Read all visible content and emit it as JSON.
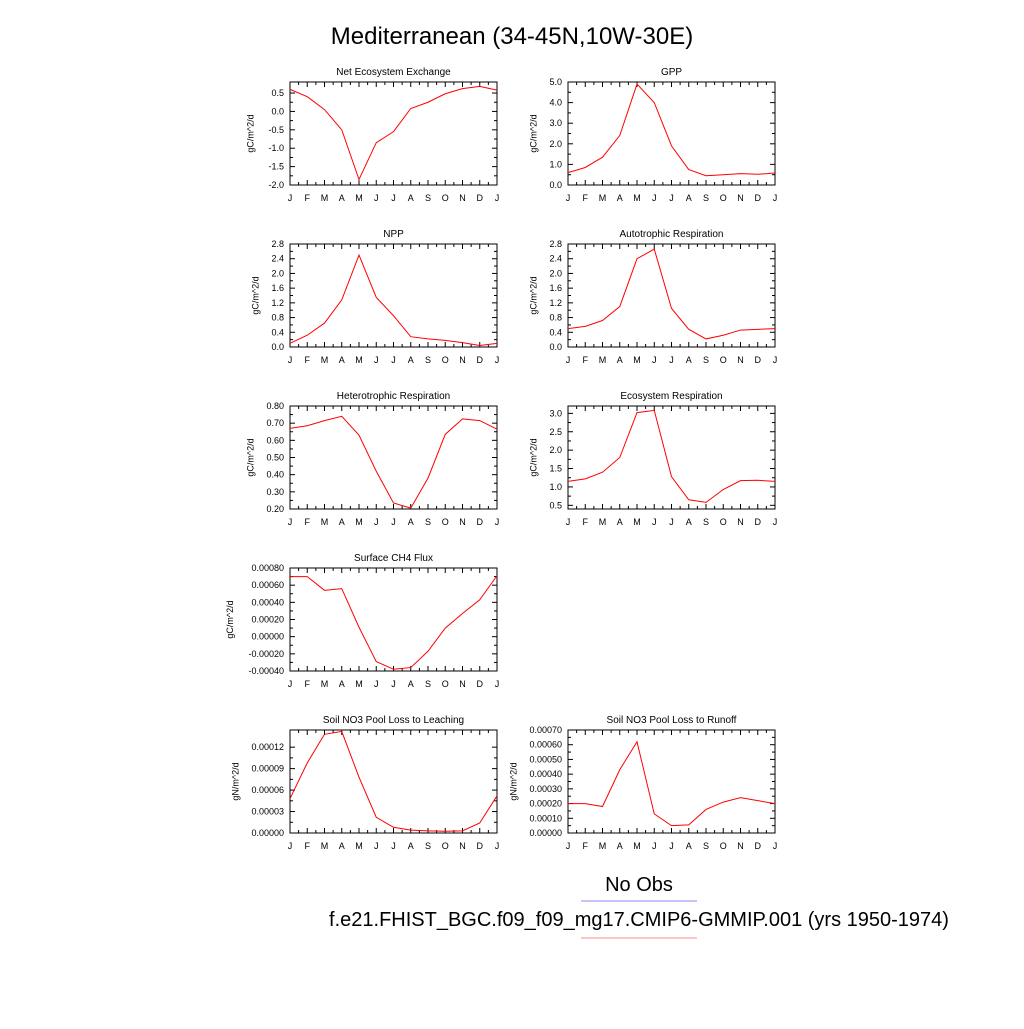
{
  "main_title": "Mediterranean (34-45N,10W-30E)",
  "colors": {
    "model": "#ff0000",
    "obs": "#0000ff"
  },
  "legend": [
    {
      "label": "No Obs",
      "color": "#8888ff"
    },
    {
      "label": "f.e21.FHIST_BGC.f09_f09_mg17.CMIP6-GMMIP.001 (yrs 1950-1974)",
      "color": "#ff8888"
    }
  ],
  "chart_data": [
    {
      "type": "line",
      "title": "Net Ecosystem Exchange",
      "ylabel": "gC/m^2/d",
      "categories": [
        "J",
        "F",
        "M",
        "A",
        "M",
        "J",
        "J",
        "A",
        "S",
        "O",
        "N",
        "D",
        "J"
      ],
      "ylim": [
        -2.0,
        0.8
      ],
      "yticks": [
        -2.0,
        -1.5,
        -1.0,
        -0.5,
        0.0,
        0.5
      ],
      "ytick_labels": [
        "-2.0",
        "-1.5",
        "-1.0",
        "-0.5",
        "0.0",
        "0.5"
      ],
      "values": [
        0.6,
        0.4,
        0.05,
        -0.5,
        -1.85,
        -0.85,
        -0.55,
        0.08,
        0.25,
        0.48,
        0.62,
        0.68,
        0.58
      ]
    },
    {
      "type": "line",
      "title": "GPP",
      "ylabel": "gC/m^2/d",
      "categories": [
        "J",
        "F",
        "M",
        "A",
        "M",
        "J",
        "J",
        "A",
        "S",
        "O",
        "N",
        "D",
        "J"
      ],
      "ylim": [
        0.0,
        5.0
      ],
      "yticks": [
        0.0,
        1.0,
        2.0,
        3.0,
        4.0,
        5.0
      ],
      "ytick_labels": [
        "0.0",
        "1.0",
        "2.0",
        "3.0",
        "4.0",
        "5.0"
      ],
      "values": [
        0.6,
        0.85,
        1.35,
        2.4,
        4.9,
        4.0,
        1.9,
        0.75,
        0.45,
        0.5,
        0.55,
        0.52,
        0.58
      ]
    },
    {
      "type": "line",
      "title": "NPP",
      "ylabel": "gC/m^2/d",
      "categories": [
        "J",
        "F",
        "M",
        "A",
        "M",
        "J",
        "J",
        "A",
        "S",
        "O",
        "N",
        "D",
        "J"
      ],
      "ylim": [
        0.0,
        2.8
      ],
      "yticks": [
        0.0,
        0.4,
        0.8,
        1.2,
        1.6,
        2.0,
        2.4,
        2.8
      ],
      "ytick_labels": [
        "0.0",
        "0.4",
        "0.8",
        "1.2",
        "1.6",
        "2.0",
        "2.4",
        "2.8"
      ],
      "values": [
        0.1,
        0.32,
        0.65,
        1.28,
        2.5,
        1.35,
        0.85,
        0.28,
        0.22,
        0.18,
        0.12,
        0.04,
        0.1
      ]
    },
    {
      "type": "line",
      "title": "Autotrophic Respiration",
      "ylabel": "gC/m^2/d",
      "categories": [
        "J",
        "F",
        "M",
        "A",
        "M",
        "J",
        "J",
        "A",
        "S",
        "O",
        "N",
        "D",
        "J"
      ],
      "ylim": [
        0.0,
        2.8
      ],
      "yticks": [
        0.0,
        0.4,
        0.8,
        1.2,
        1.6,
        2.0,
        2.4,
        2.8
      ],
      "ytick_labels": [
        "0.0",
        "0.4",
        "0.8",
        "1.2",
        "1.6",
        "2.0",
        "2.4",
        "2.8"
      ],
      "values": [
        0.5,
        0.56,
        0.72,
        1.1,
        2.4,
        2.66,
        1.05,
        0.48,
        0.22,
        0.32,
        0.46,
        0.48,
        0.5
      ]
    },
    {
      "type": "line",
      "title": "Heterotrophic Respiration",
      "ylabel": "gC/m^2/d",
      "categories": [
        "J",
        "F",
        "M",
        "A",
        "M",
        "J",
        "J",
        "A",
        "S",
        "O",
        "N",
        "D",
        "J"
      ],
      "ylim": [
        0.2,
        0.8
      ],
      "yticks": [
        0.2,
        0.3,
        0.4,
        0.5,
        0.6,
        0.7,
        0.8
      ],
      "ytick_labels": [
        "0.20",
        "0.30",
        "0.40",
        "0.50",
        "0.60",
        "0.70",
        "0.80"
      ],
      "values": [
        0.67,
        0.685,
        0.715,
        0.74,
        0.63,
        0.42,
        0.235,
        0.205,
        0.38,
        0.635,
        0.725,
        0.715,
        0.665
      ]
    },
    {
      "type": "line",
      "title": "Ecosystem Respiration",
      "ylabel": "gC/m^2/d",
      "categories": [
        "J",
        "F",
        "M",
        "A",
        "M",
        "J",
        "J",
        "A",
        "S",
        "O",
        "N",
        "D",
        "J"
      ],
      "ylim": [
        0.4,
        3.2
      ],
      "yticks": [
        0.5,
        1.0,
        1.5,
        2.0,
        2.5,
        3.0
      ],
      "ytick_labels": [
        "0.5",
        "1.0",
        "1.5",
        "2.0",
        "2.5",
        "3.0"
      ],
      "values": [
        1.15,
        1.22,
        1.4,
        1.8,
        3.02,
        3.08,
        1.28,
        0.65,
        0.58,
        0.93,
        1.17,
        1.18,
        1.15
      ]
    },
    {
      "type": "line",
      "title": "Surface CH4 Flux",
      "ylabel": "gC/m^2/d",
      "categories": [
        "J",
        "F",
        "M",
        "A",
        "M",
        "J",
        "J",
        "A",
        "S",
        "O",
        "N",
        "D",
        "J"
      ],
      "ylim": [
        -0.0004,
        0.0008
      ],
      "yticks": [
        -0.0004,
        -0.0002,
        0.0,
        0.0002,
        0.0004,
        0.0006,
        0.0008
      ],
      "ytick_labels": [
        "-0.00040",
        "-0.00020",
        "0.00000",
        "0.00020",
        "0.00040",
        "0.00060",
        "0.00080"
      ],
      "values": [
        0.0007,
        0.0007,
        0.00054,
        0.00056,
        0.00011,
        -0.00029,
        -0.00038,
        -0.00036,
        -0.00017,
        0.0001,
        0.00027,
        0.00043,
        0.00071
      ]
    },
    {
      "type": "line",
      "title": "Soil NO3 Pool Loss to Leaching",
      "ylabel": "gN/m^2/d",
      "categories": [
        "J",
        "F",
        "M",
        "A",
        "M",
        "J",
        "J",
        "A",
        "S",
        "O",
        "N",
        "D",
        "J"
      ],
      "ylim": [
        0.0,
        0.000144
      ],
      "yticks": [
        0.0,
        3e-05,
        6e-05,
        9e-05,
        0.00012
      ],
      "ytick_labels": [
        "0.00000",
        "0.00003",
        "0.00006",
        "0.00009",
        "0.00012"
      ],
      "values": [
        4.8e-05,
        9.8e-05,
        0.000138,
        0.000142,
        7.8e-05,
        2.2e-05,
        8e-06,
        4e-06,
        3e-06,
        2.5e-06,
        3e-06,
        1.4e-05,
        5.2e-05
      ]
    },
    {
      "type": "line",
      "title": "Soil NO3 Pool Loss to Runoff",
      "ylabel": "gN/m^2/d",
      "categories": [
        "J",
        "F",
        "M",
        "A",
        "M",
        "J",
        "J",
        "A",
        "S",
        "O",
        "N",
        "D",
        "J"
      ],
      "ylim": [
        0.0,
        0.0007
      ],
      "yticks": [
        0.0,
        0.0001,
        0.0002,
        0.0003,
        0.0004,
        0.0005,
        0.0006,
        0.0007
      ],
      "ytick_labels": [
        "0.00000",
        "0.00010",
        "0.00020",
        "0.00030",
        "0.00040",
        "0.00050",
        "0.00060",
        "0.00070"
      ],
      "values": [
        0.0002,
        0.0002,
        0.00018,
        0.00043,
        0.00062,
        0.00013,
        5e-05,
        5.5e-05,
        0.00016,
        0.00021,
        0.00024,
        0.00022,
        0.0002
      ]
    }
  ]
}
